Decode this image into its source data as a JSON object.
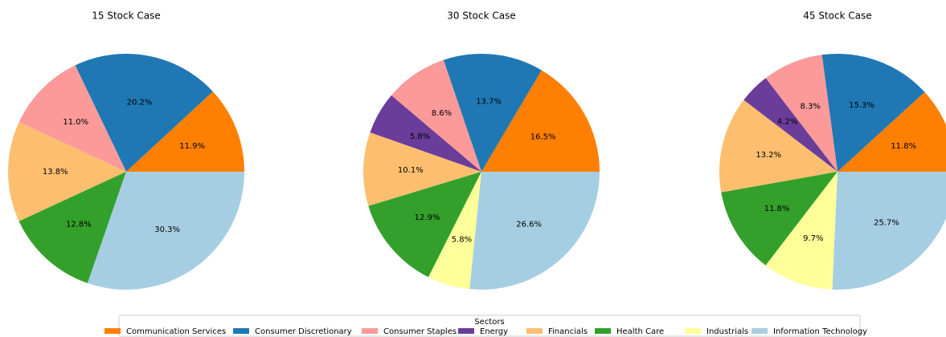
{
  "chart_data": [
    {
      "type": "pie",
      "title": "15 Stock Case",
      "values": [
        11.9,
        20.2,
        11.0,
        null,
        13.8,
        12.8,
        null,
        30.3
      ],
      "value_labels": [
        "11.9%",
        "20.2%",
        "11.0%",
        null,
        "13.8%",
        "12.8%",
        null,
        "30.3%"
      ]
    },
    {
      "type": "pie",
      "title": "30 Stock Case",
      "values": [
        16.5,
        13.7,
        8.6,
        5.8,
        10.1,
        12.9,
        5.8,
        26.6
      ],
      "value_labels": [
        "16.5%",
        "13.7%",
        "8.6%",
        "5.8%",
        "10.1%",
        "12.9%",
        "5.8%",
        "26.6%"
      ]
    },
    {
      "type": "pie",
      "title": "45 Stock Case",
      "values": [
        11.8,
        15.3,
        8.3,
        4.2,
        13.2,
        11.8,
        9.7,
        25.7
      ],
      "value_labels": [
        "11.8%",
        "15.3%",
        "8.3%",
        "4.2%",
        "13.2%",
        "11.8%",
        "9.7%",
        "25.7%"
      ]
    }
  ],
  "legend": {
    "title": "Sectors",
    "labels": [
      "Communication Services",
      "Consumer Discretionary",
      "Consumer Staples",
      "Energy",
      "Financials",
      "Health Care",
      "Industrials",
      "Information Technology"
    ],
    "colors": [
      "#ff7f00",
      "#1f78b4",
      "#fb9a99",
      "#6a3d9a",
      "#fdbf6f",
      "#33a02c",
      "#ffff99",
      "#a6cee3"
    ],
    "loc": "lower center"
  }
}
